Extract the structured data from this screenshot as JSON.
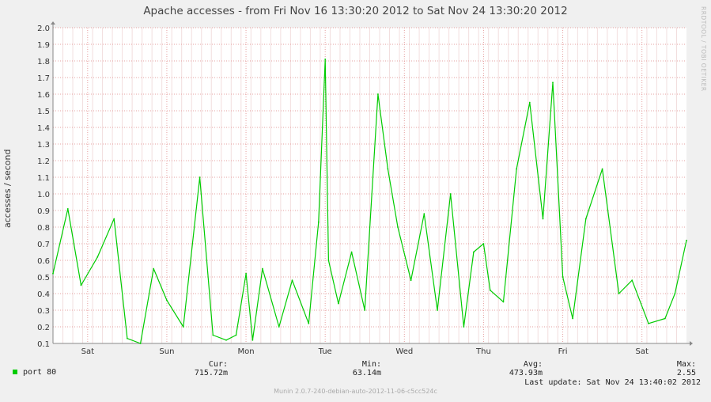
{
  "chart_data": {
    "type": "line",
    "title": "Apache accesses - from Fri Nov 16 13:30:20 2012 to Sat Nov 24 13:30:20 2012",
    "ylabel": "accesses / second",
    "xlabel": "",
    "ylim": [
      0.1,
      2.0
    ],
    "xlim": [
      "2012-11-16 13:30",
      "2012-11-24 13:30"
    ],
    "yticks": [
      "0.1",
      "0.2",
      "0.3",
      "0.4",
      "0.5",
      "0.6",
      "0.7",
      "0.8",
      "0.9",
      "1.0",
      "1.1",
      "1.2",
      "1.3",
      "1.4",
      "1.5",
      "1.6",
      "1.7",
      "1.8",
      "1.9",
      "2.0"
    ],
    "xticks": [
      {
        "label": "Sat",
        "at": "2012-11-17 00:00"
      },
      {
        "label": "Sun",
        "at": "2012-11-18 00:00"
      },
      {
        "label": "Mon",
        "at": "2012-11-19 00:00"
      },
      {
        "label": "Tue",
        "at": "2012-11-20 00:00"
      },
      {
        "label": "Wed",
        "at": "2012-11-21 00:00"
      },
      {
        "label": "Thu",
        "at": "2012-11-22 00:00"
      },
      {
        "label": "Fri",
        "at": "2012-11-23 00:00"
      },
      {
        "label": "Sat",
        "at": "2012-11-24 00:00"
      }
    ],
    "grid": true,
    "series": [
      {
        "name": "port 80",
        "color": "#00cc00",
        "x": [
          "2012-11-16 13:30",
          "2012-11-16 18:00",
          "2012-11-16 22:00",
          "2012-11-17 03:00",
          "2012-11-17 08:00",
          "2012-11-17 12:00",
          "2012-11-17 16:00",
          "2012-11-17 20:00",
          "2012-11-18 00:00",
          "2012-11-18 05:00",
          "2012-11-18 10:00",
          "2012-11-18 14:00",
          "2012-11-18 18:00",
          "2012-11-18 21:00",
          "2012-11-19 00:00",
          "2012-11-19 02:00",
          "2012-11-19 05:00",
          "2012-11-19 10:00",
          "2012-11-19 14:00",
          "2012-11-19 19:00",
          "2012-11-19 22:00",
          "2012-11-20 00:00",
          "2012-11-20 01:00",
          "2012-11-20 04:00",
          "2012-11-20 08:00",
          "2012-11-20 12:00",
          "2012-11-20 16:00",
          "2012-11-20 19:00",
          "2012-11-20 22:00",
          "2012-11-21 02:00",
          "2012-11-21 06:00",
          "2012-11-21 10:00",
          "2012-11-21 14:00",
          "2012-11-21 18:00",
          "2012-11-21 21:00",
          "2012-11-22 00:00",
          "2012-11-22 02:00",
          "2012-11-22 06:00",
          "2012-11-22 10:00",
          "2012-11-22 14:00",
          "2012-11-22 18:00",
          "2012-11-22 21:00",
          "2012-11-23 00:00",
          "2012-11-23 03:00",
          "2012-11-23 07:00",
          "2012-11-23 12:00",
          "2012-11-23 17:00",
          "2012-11-23 21:00",
          "2012-11-24 02:00",
          "2012-11-24 07:00",
          "2012-11-24 10:00",
          "2012-11-24 13:30"
        ],
        "values": [
          0.52,
          0.91,
          0.45,
          0.62,
          0.85,
          0.13,
          0.1,
          0.55,
          0.36,
          0.2,
          1.1,
          0.15,
          0.12,
          0.15,
          0.52,
          0.12,
          0.55,
          0.2,
          0.48,
          0.22,
          0.83,
          1.81,
          0.6,
          0.34,
          0.65,
          0.3,
          1.6,
          1.15,
          0.8,
          0.48,
          0.88,
          0.3,
          1.0,
          0.2,
          0.65,
          0.7,
          0.42,
          0.35,
          1.15,
          1.55,
          0.85,
          1.67,
          0.5,
          0.25,
          0.85,
          1.15,
          0.4,
          0.48,
          0.22,
          0.25,
          0.4,
          0.72
        ]
      }
    ]
  },
  "legend": {
    "series_label": "port 80",
    "cur_header": "Cur:",
    "min_header": "Min:",
    "avg_header": "Avg:",
    "max_header": "Max:",
    "cur_value": "715.72m",
    "min_value": "63.14m",
    "avg_value": "473.93m",
    "max_value": "2.55",
    "last_update": "Last update: Sat Nov 24 13:40:02 2012"
  },
  "side_label": "RRDTOOL / TOBI OETIKER",
  "footer": "Munin 2.0.7-240-debian-auto-2012-11-06-c5cc524c",
  "colors": {
    "line": "#00cc00",
    "grid": "#e6a0a0",
    "plot_bg": "#ffffff",
    "page_bg": "#f0f0f0"
  }
}
